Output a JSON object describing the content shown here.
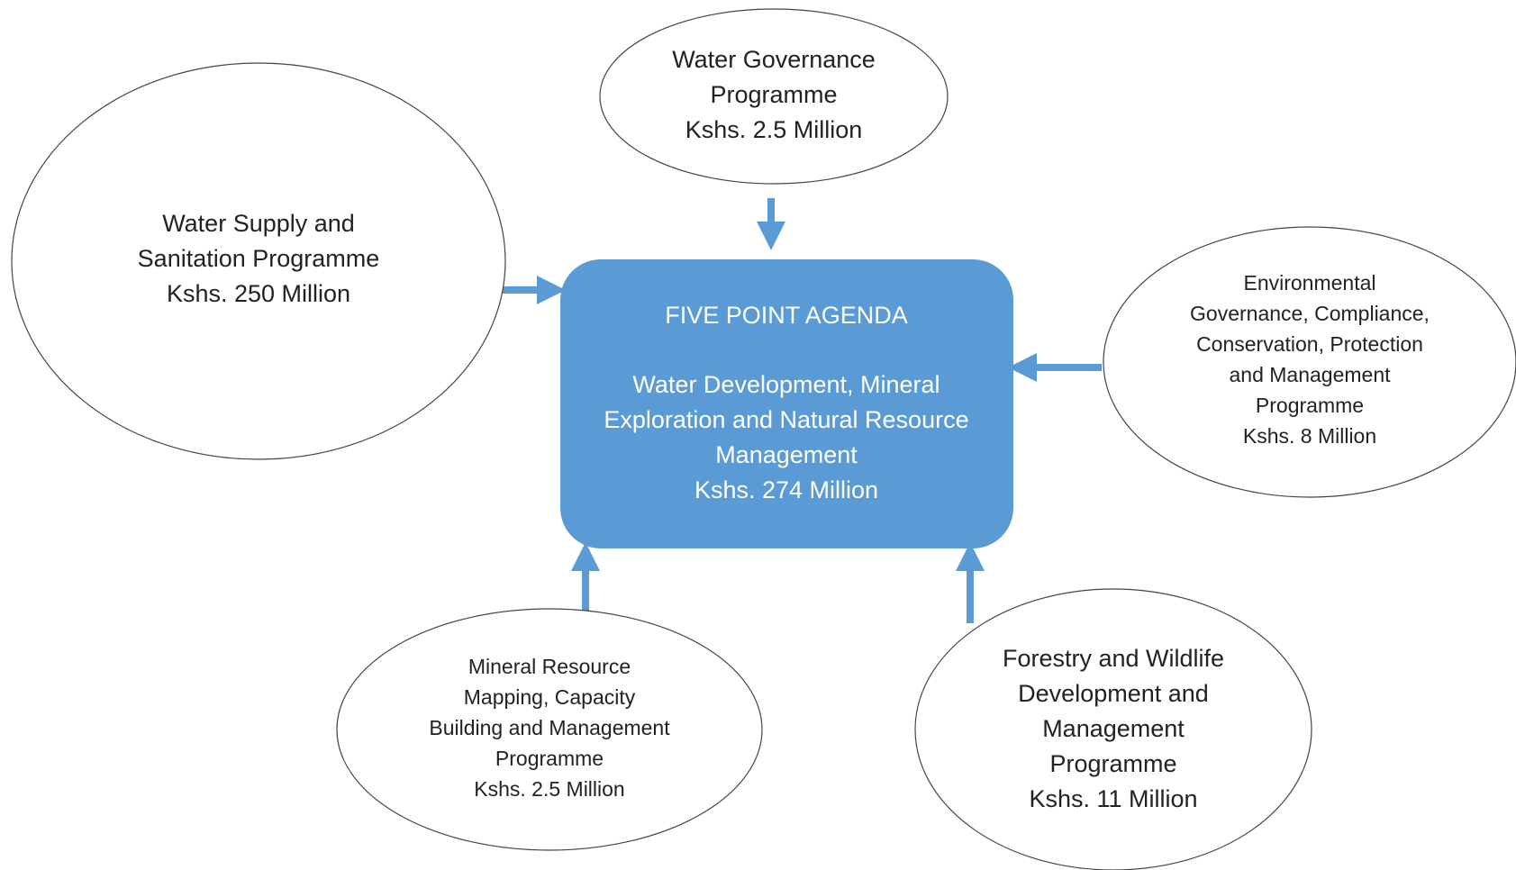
{
  "center": {
    "title": "FIVE POINT AGENDA",
    "lines": [
      "Water Development, Mineral",
      "Exploration and Natural Resource",
      "Management",
      "Kshs. 274 Million"
    ]
  },
  "nodes": [
    {
      "lines": [
        "Water Governance",
        "Programme",
        "Kshs. 2.5 Million"
      ]
    },
    {
      "lines": [
        "Water Supply and",
        "Sanitation Programme",
        "Kshs. 250 Million"
      ]
    },
    {
      "lines": [
        "Environmental",
        "Governance, Compliance,",
        "Conservation, Protection",
        "and Management",
        "Programme",
        "Kshs. 8 Million"
      ]
    },
    {
      "lines": [
        "Mineral Resource",
        "Mapping, Capacity",
        "Building and Management",
        "Programme",
        "Kshs. 2.5 Million"
      ]
    },
    {
      "lines": [
        "Forestry and Wildlife",
        "Development and",
        "Management",
        "Programme",
        "Kshs. 11 Million"
      ]
    }
  ]
}
